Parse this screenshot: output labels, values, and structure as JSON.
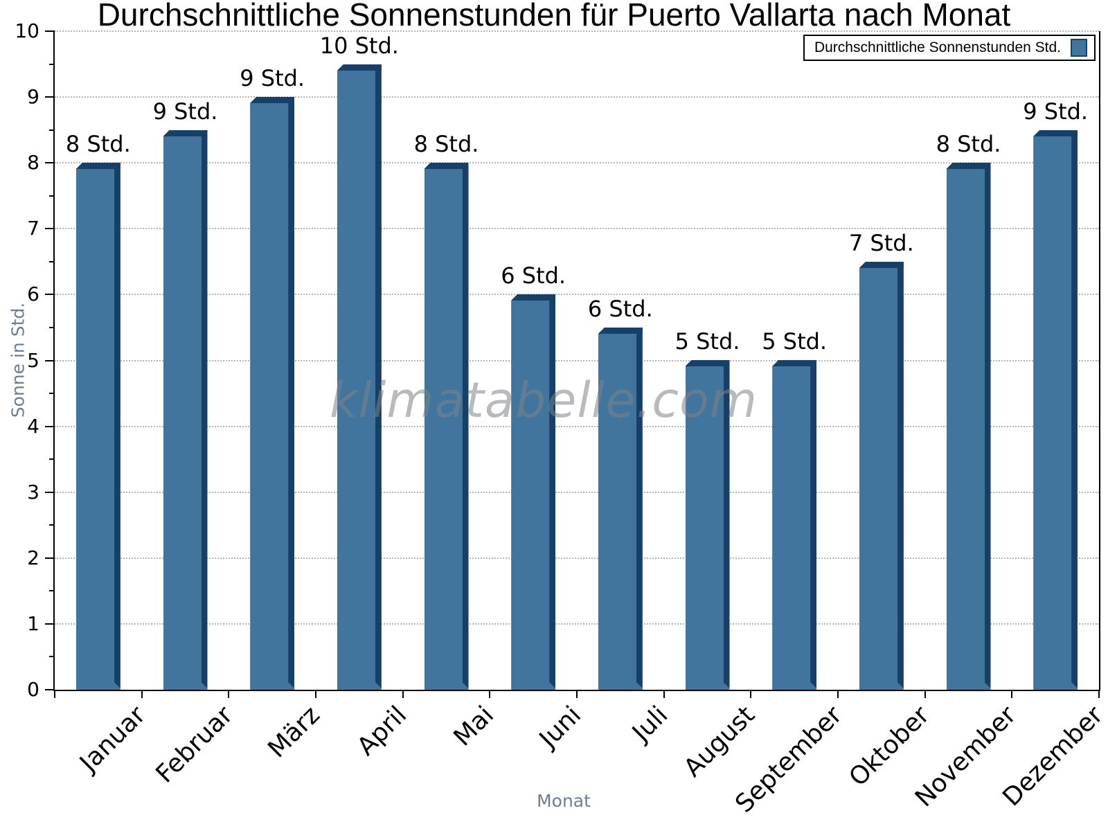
{
  "page": {
    "title": "Durchschnittliche Sonnenstunden für Puerto Vallarta nach Monat",
    "watermark": "klimatabelle.com"
  },
  "legend": {
    "label": "Durchschnittliche Sonnenstunden Std.",
    "position": "top-right"
  },
  "axes": {
    "y_title": "Sonne in Std.",
    "x_title": "Monat"
  },
  "chart_data": {
    "type": "bar",
    "title": "Durchschnittliche Sonnenstunden für Puerto Vallarta nach Monat",
    "xlabel": "Monat",
    "ylabel": "Sonne in Std.",
    "categories": [
      "Januar",
      "Februar",
      "März",
      "April",
      "Mai",
      "Juni",
      "Juli",
      "August",
      "September",
      "Oktober",
      "November",
      "Dezember"
    ],
    "values": [
      8.0,
      8.5,
      9.0,
      9.5,
      8.0,
      6.0,
      5.5,
      5.0,
      5.0,
      6.5,
      8.0,
      8.5
    ],
    "bar_labels": [
      "8 Std.",
      "9 Std.",
      "9 Std.",
      "10 Std.",
      "8 Std.",
      "6 Std.",
      "6 Std.",
      "5 Std.",
      "5 Std.",
      "7 Std.",
      "8 Std.",
      "9 Std."
    ],
    "series_name": "Durchschnittliche Sonnenstunden Std.",
    "ylim": [
      0,
      10
    ],
    "y_tick_step": 1,
    "y_minor_tick_step": 0.5,
    "grid": "dotted-horizontal",
    "legend_position": "top-right",
    "colors": {
      "bar_fill": "#42759D",
      "bar_edge": "#174069",
      "grid": "#b4b4b4",
      "axis_title_text": "#6e7e8e",
      "tick_text": "#000000",
      "title_text": "#000000"
    }
  }
}
